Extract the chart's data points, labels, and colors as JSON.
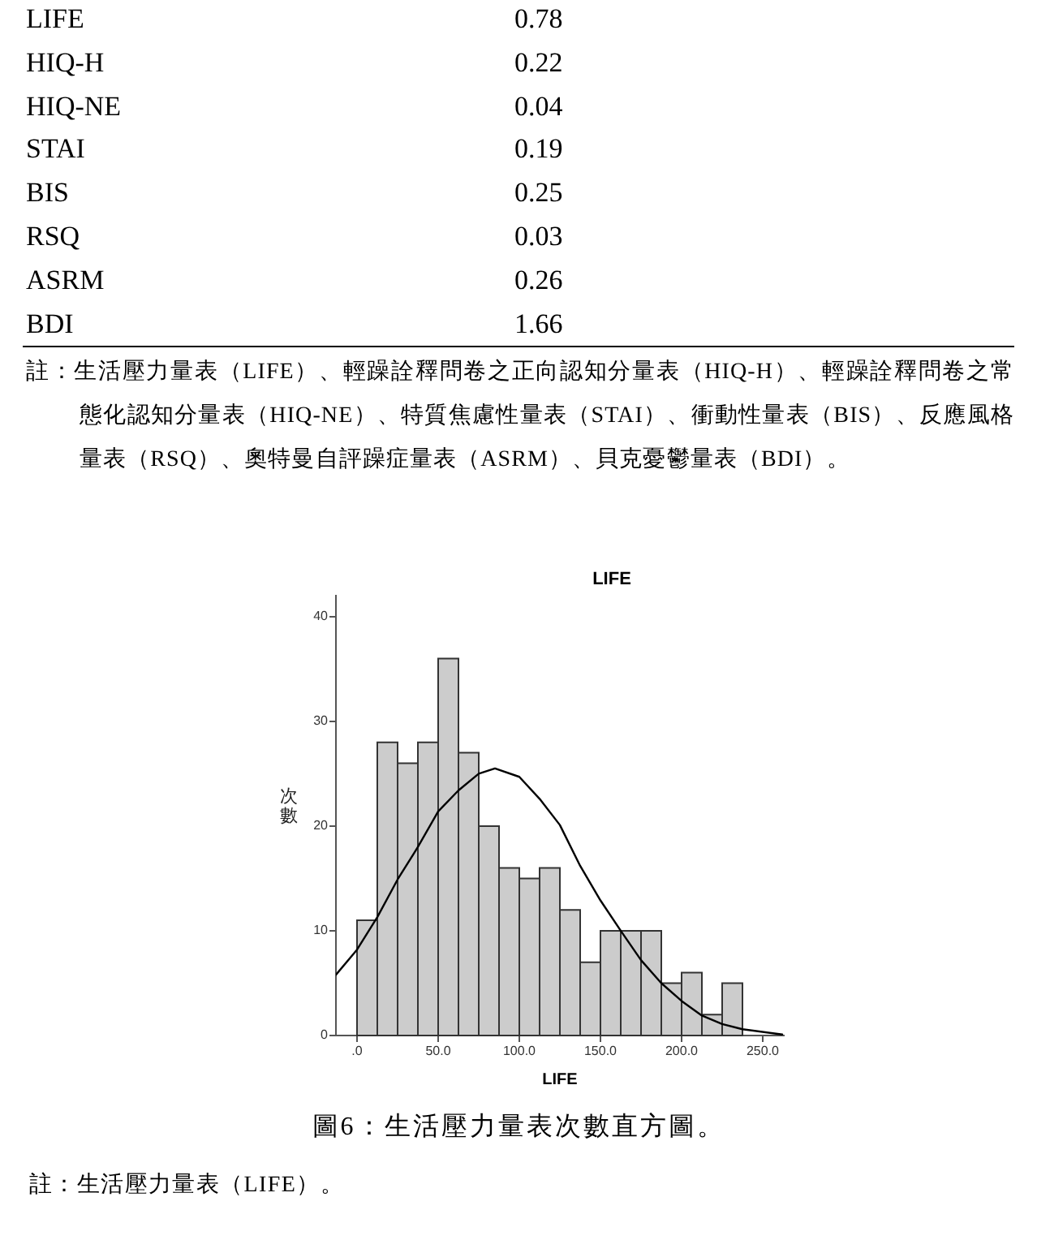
{
  "chart_data": [
    {
      "type": "other",
      "annotations": [
        "LIFE",
        "0.78",
        "HIQ-H",
        "0.22",
        "HIQ-NE",
        "0.04",
        "STAI",
        "0.19",
        "BIS",
        "0.25",
        "RSQ",
        "0.03",
        "ASRM",
        "0.26",
        "BDI",
        "1.66",
        "註：生活壓力量表（LIFE）、輕躁詮釋問卷之正向認知分量表（HIQ-H）、輕躁詮釋問卷之常態化認知分量表（HIQ-NE）、特質焦慮性量表（STAI）、衝動性量表（BIS）、反應風格量表（RSQ）、奧特曼自評躁症量表（ASRM）、貝克憂鬱量表（BDI）。"
      ]
    },
    {
      "type": "histogram",
      "title": "LIFE",
      "xlabel": "LIFE",
      "ylabel": "次數",
      "bins": [
        0,
        12.5,
        25,
        37.5,
        50,
        62.5,
        75,
        87.5,
        100,
        112.5,
        125,
        137.5,
        150,
        162.5,
        175,
        187.5,
        200,
        212.5,
        225,
        237.5
      ],
      "values": [
        11,
        28,
        26,
        28,
        36,
        27,
        20,
        16,
        15,
        16,
        12,
        7,
        10,
        10,
        10,
        5,
        6,
        2,
        5
      ],
      "color": "#cccccc",
      "series": [
        {
          "type": "line",
          "x": [
            -13,
            0,
            12.5,
            25,
            37.5,
            50,
            62.5,
            75,
            85,
            100,
            112.5,
            125,
            137.5,
            150,
            162.5,
            175,
            187.5,
            200,
            212.5,
            225,
            237.5,
            262
          ],
          "values": [
            5.8,
            8.2,
            11.3,
            14.9,
            18.0,
            21.4,
            23.4,
            25.0,
            25.5,
            24.7,
            22.6,
            20.1,
            16.2,
            12.9,
            10.0,
            7.2,
            5.0,
            3.3,
            1.9,
            1.1,
            0.6,
            0.1
          ],
          "color": "#000000"
        }
      ],
      "xlim": [
        -13,
        263
      ],
      "ylim": [
        0,
        42
      ],
      "xticks": [
        {
          "value": 0,
          "label": ".0"
        },
        {
          "value": 50,
          "label": "50.0"
        },
        {
          "value": 100,
          "label": "100.0"
        },
        {
          "value": 150,
          "label": "150.0"
        },
        {
          "value": 200,
          "label": "200.0"
        },
        {
          "value": 250,
          "label": "250.0"
        }
      ],
      "yticks": [
        0,
        10,
        20,
        30,
        40
      ],
      "annotations": [
        "圖6：生活壓力量表次數直方圖。",
        "註：生活壓力量表（LIFE）。"
      ]
    }
  ]
}
